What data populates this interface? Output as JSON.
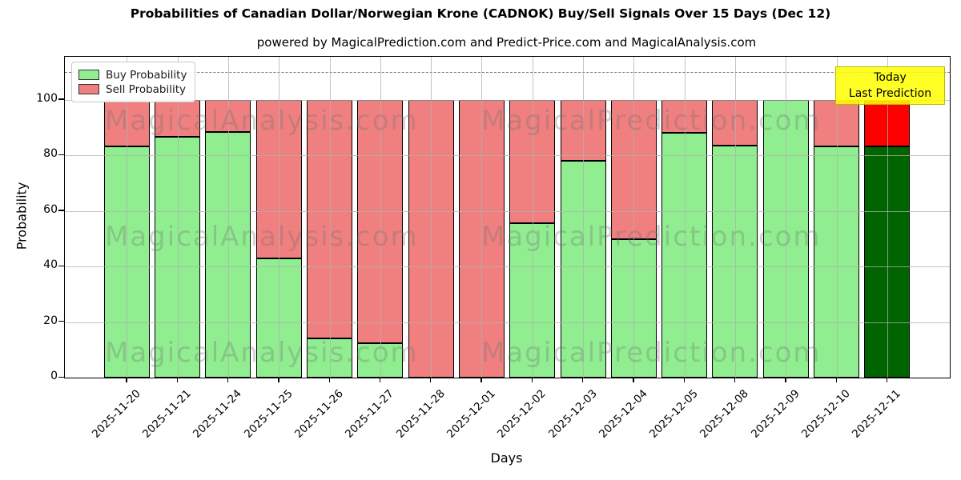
{
  "chart": {
    "title": "Probabilities of Canadian Dollar/Norwegian Krone (CADNOK) Buy/Sell Signals Over 15 Days (Dec 12)",
    "subtitle": "powered by MagicalPrediction.com and Predict-Price.com and MagicalAnalysis.com",
    "y_axis": {
      "label": "Probability",
      "ticks": [
        0,
        20,
        40,
        60,
        80,
        100
      ],
      "dashed_line_value": 110
    },
    "x_axis": {
      "label": "Days"
    },
    "legend": [
      {
        "label": "Buy Probability",
        "color": "#90ee90"
      },
      {
        "label": "Sell Probability",
        "color": "#f08080"
      }
    ],
    "annotation": {
      "lines": [
        "Today",
        "Last Prediction"
      ],
      "bg_color": "#ffff00"
    },
    "watermarks": {
      "left_text": "MagicalAnalysis.com",
      "right_text": "MagicalPrediction.com"
    }
  },
  "chart_data": {
    "type": "bar",
    "stacked": true,
    "title": "Probabilities of Canadian Dollar/Norwegian Krone (CADNOK) Buy/Sell Signals Over 15 Days (Dec 12)",
    "xlabel": "Days",
    "ylabel": "Probability",
    "ylim": [
      0,
      115.5
    ],
    "grid": true,
    "legend_position": "upper left",
    "categories": [
      "2025-11-20",
      "2025-11-21",
      "2025-11-24",
      "2025-11-25",
      "2025-11-26",
      "2025-11-27",
      "2025-11-28",
      "2025-12-01",
      "2025-12-02",
      "2025-12-03",
      "2025-12-04",
      "2025-12-05",
      "2025-12-08",
      "2025-12-09",
      "2025-12-10",
      "2025-12-11"
    ],
    "series": [
      {
        "name": "Buy Probability",
        "color": "#90ee90",
        "values": [
          83.3,
          86.7,
          88.3,
          42.8,
          14.2,
          12.4,
          0,
          0,
          55.5,
          78.0,
          49.8,
          88.2,
          83.5,
          100,
          83.3,
          83.3
        ]
      },
      {
        "name": "Sell Probability",
        "color": "#f08080",
        "values": [
          16.7,
          13.3,
          11.7,
          57.2,
          85.8,
          87.6,
          100,
          100,
          44.5,
          22.0,
          50.2,
          11.8,
          16.5,
          0,
          16.7,
          16.7
        ]
      }
    ],
    "today_bar": {
      "index": 15,
      "buy_color": "#006400",
      "sell_color": "#ff0000"
    },
    "dashed_reference_line": 110
  }
}
